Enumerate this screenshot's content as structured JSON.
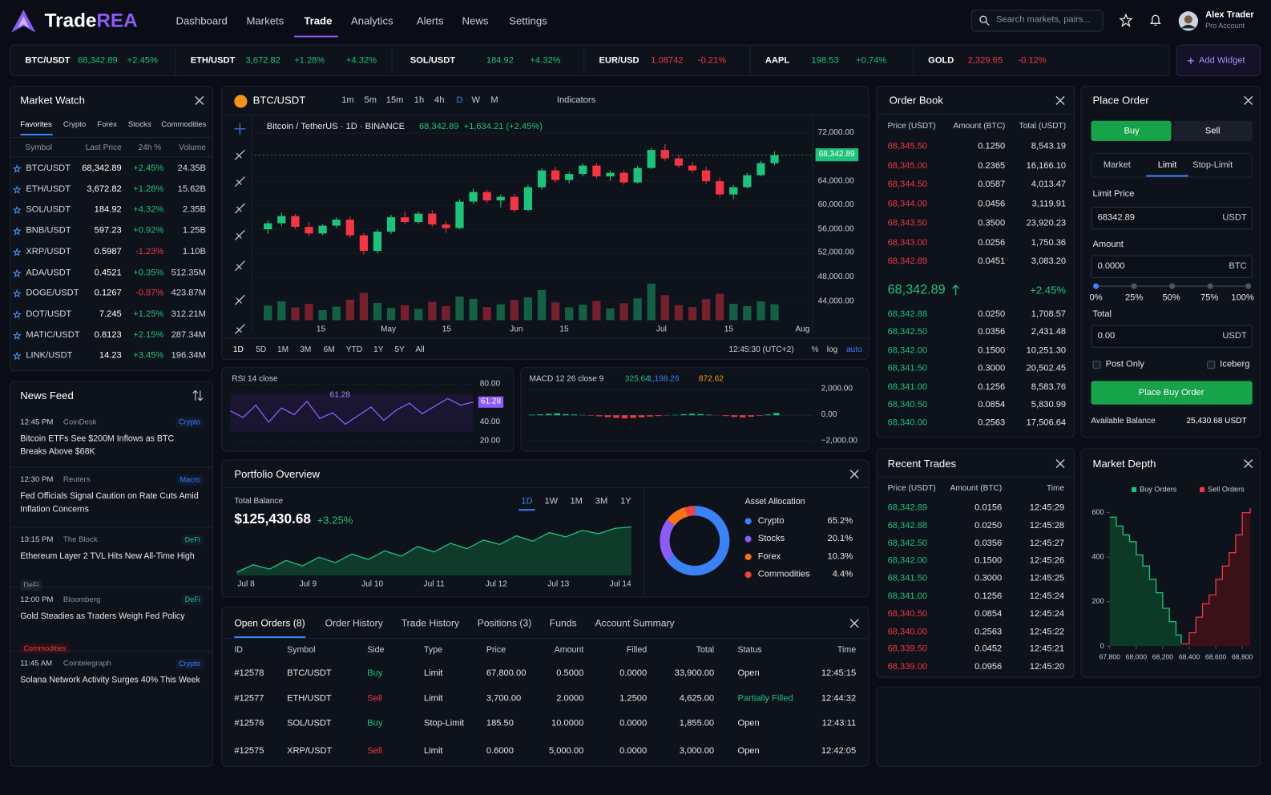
{
  "header": {
    "brand": [
      "Trade",
      "REA"
    ],
    "nav": [
      "Dashboard",
      "Markets",
      "Trade",
      "Analytics",
      "Alerts",
      "News",
      "Settings"
    ],
    "search": "Search markets, pairs...",
    "user_name": "Alex Trader",
    "user_role": "Pro Account"
  },
  "ticker": [
    {
      "symbol": "BTC/USDT",
      "price": "68,342.89",
      "changes": [
        "+2.45%"
      ]
    },
    {
      "symbol": "ETH/USDT",
      "price": "3,672.82",
      "changes": [
        "+1.28%",
        "+4.32%"
      ]
    },
    {
      "symbol": "SOL/USDT",
      "price": "184.92",
      "changes": [
        "+4.32%"
      ]
    },
    {
      "symbol": "EUR/USD",
      "price": "1.08742",
      "changes": [
        "-0.21%"
      ]
    },
    {
      "symbol": "AAPL",
      "price": "198.53",
      "changes": [
        "+0.74%"
      ]
    },
    {
      "symbol": "GOLD",
      "price": "2,329.65",
      "changes": [
        "-0.12%"
      ]
    }
  ],
  "add_widget": "Add Widget",
  "market_watch": {
    "title": "Market Watch",
    "tabs": [
      "Favorites",
      "Crypto",
      "Forex",
      "Stocks",
      "Commodities"
    ],
    "headers": [
      "Symbol",
      "Last Price",
      "24h %",
      "Volume"
    ],
    "rows": [
      [
        "BTC/USDT",
        "68,342.89",
        "+2.45%",
        "24.35B"
      ],
      [
        "ETH/USDT",
        "3,672.82",
        "+1.28%",
        "15.62B"
      ],
      [
        "SOL/USDT",
        "184.92",
        "+4.32%",
        "2.35B"
      ],
      [
        "BNB/USDT",
        "597.23",
        "+0.92%",
        "1.25B"
      ],
      [
        "XRP/USDT",
        "0.5987",
        "-1.23%",
        "1.10B"
      ],
      [
        "ADA/USDT",
        "0.4521",
        "+0.35%",
        "512.35M"
      ],
      [
        "DOGE/USDT",
        "0.1267",
        "-0.87%",
        "423.87M"
      ],
      [
        "DOT/USDT",
        "7.245",
        "+1.25%",
        "312.21M"
      ],
      [
        "MATIC/USDT",
        "0.8123",
        "+2.15%",
        "287.34M"
      ],
      [
        "LINK/USDT",
        "14.23",
        "+3.45%",
        "196.34M"
      ]
    ]
  },
  "news": {
    "title": "News Feed",
    "items": [
      {
        "time": "12:45 PM",
        "source": "CoinDesk",
        "tag": "Crypto",
        "headline": "Bitcoin ETFs See $200M Inflows as BTC Breaks Above $68K"
      },
      {
        "time": "12:30 PM",
        "source": "Reuters",
        "tag": "Macro",
        "headline": "Fed Officials Signal Caution on Rate Cuts Amid Inflation Concerns"
      },
      {
        "time": "13:15 PM",
        "source": "The Block",
        "tag": "DeFi",
        "headline": "Ethereum Layer 2 TVL Hits New All-Time High",
        "extra_tag": "DeFi"
      },
      {
        "time": "12:00 PM",
        "source": "Bloomberg",
        "tag": "DeFi",
        "headline": "Gold Steadies as Traders Weigh Fed Policy",
        "extra_tag": "Commodities"
      },
      {
        "time": "11:45 AM",
        "source": "Cointelegraph",
        "tag": "Crypto",
        "headline": "Solana Network Activity Surges 40% This Week"
      }
    ]
  },
  "price_chart": {
    "pair": "BTC/USDT",
    "timeframes": [
      "1m",
      "5m",
      "15m",
      "1h",
      "4h",
      "D",
      "W",
      "M"
    ],
    "indicators": "Indicators",
    "legend": "Bitcoin / TetherUS · 1D · BINANCE",
    "legend_price": "68,342.89",
    "legend_change": "+1,634.21 (+2.45%)",
    "current_price": {
      "value": 68342.89,
      "label": "68,342.89"
    },
    "ylim": [
      40600,
      75000
    ],
    "yticks": [
      {
        "value": 72000,
        "label": "72,000.00"
      },
      {
        "value": 64000,
        "label": "64,000.00"
      },
      {
        "value": 60000,
        "label": "60,000.00"
      },
      {
        "value": 56000,
        "label": "56,000.00"
      },
      {
        "value": 52000,
        "label": "52,000.00"
      },
      {
        "value": 48000,
        "label": "48,000.00"
      },
      {
        "value": 44000,
        "label": "44,000.00"
      }
    ],
    "x_labels": [
      "15",
      "May",
      "15",
      "Jun",
      "15",
      "Jul",
      "15",
      "Aug"
    ],
    "candles": [
      [
        56000,
        57500,
        55200,
        57000
      ],
      [
        57000,
        58800,
        56500,
        58200
      ],
      [
        58200,
        58600,
        56000,
        56400
      ],
      [
        56400,
        57200,
        54800,
        55300
      ],
      [
        55300,
        56900,
        55000,
        56600
      ],
      [
        56600,
        58000,
        56200,
        57600
      ],
      [
        57600,
        58200,
        54600,
        55000
      ],
      [
        55000,
        55400,
        51800,
        52400
      ],
      [
        52400,
        56000,
        52000,
        55600
      ],
      [
        55600,
        58400,
        55200,
        58000
      ],
      [
        58000,
        58900,
        56800,
        57200
      ],
      [
        57200,
        59000,
        56900,
        58600
      ],
      [
        58600,
        59200,
        56400,
        56800
      ],
      [
        56800,
        57400,
        55400,
        56200
      ],
      [
        56200,
        61000,
        56000,
        60600
      ],
      [
        60600,
        62800,
        60200,
        62200
      ],
      [
        62200,
        62600,
        60400,
        60800
      ],
      [
        60800,
        61800,
        59600,
        61400
      ],
      [
        61400,
        61900,
        58800,
        59200
      ],
      [
        59200,
        63400,
        59000,
        63000
      ],
      [
        63000,
        66200,
        62600,
        65800
      ],
      [
        65800,
        66400,
        63800,
        64200
      ],
      [
        64200,
        65600,
        63600,
        65200
      ],
      [
        65200,
        67000,
        64800,
        66600
      ],
      [
        66600,
        67000,
        64400,
        64800
      ],
      [
        64800,
        65800,
        64000,
        65400
      ],
      [
        65400,
        65800,
        63400,
        63800
      ],
      [
        63800,
        66600,
        63600,
        66200
      ],
      [
        66200,
        69600,
        66000,
        69200
      ],
      [
        69200,
        70200,
        67400,
        67800
      ],
      [
        67800,
        68400,
        66200,
        66600
      ],
      [
        66600,
        67200,
        65400,
        65800
      ],
      [
        65800,
        66400,
        63600,
        64000
      ],
      [
        64000,
        64600,
        61400,
        61800
      ],
      [
        61800,
        63400,
        61000,
        63000
      ],
      [
        63000,
        65400,
        62800,
        65000
      ],
      [
        65000,
        67400,
        64800,
        67000
      ],
      [
        67000,
        69000,
        66600,
        68342.89
      ]
    ],
    "volumes": [
      32,
      41,
      28,
      36,
      22,
      30,
      45,
      60,
      38,
      27,
      33,
      25,
      40,
      31,
      52,
      47,
      29,
      35,
      44,
      50,
      66,
      39,
      28,
      34,
      42,
      26,
      37,
      48,
      80,
      55,
      33,
      29,
      46,
      58,
      36,
      31,
      41,
      35
    ],
    "ranges": [
      "1D",
      "5D",
      "1M",
      "3M",
      "6M",
      "YTD",
      "1Y",
      "5Y",
      "All"
    ],
    "clock": "12:45:30 (UTC+2)",
    "scale_opts": [
      "%",
      "log",
      "auto"
    ]
  },
  "rsi": {
    "label": "RSI 14 close",
    "value_label": "61.28",
    "ylim": [
      16,
      80
    ],
    "yticks": [
      {
        "value": 80,
        "label": "80.00"
      },
      {
        "value": 40,
        "label": "40.00"
      },
      {
        "value": 20,
        "label": "20.00"
      }
    ],
    "values": [
      52,
      45,
      58,
      40,
      55,
      48,
      62,
      44,
      50,
      38,
      47,
      56,
      42,
      53,
      60,
      49,
      57,
      65,
      58,
      61.28
    ]
  },
  "macd": {
    "label": "MACD 12 26 close 9",
    "values_text": [
      "325.64",
      "1,198.26",
      "872.62"
    ],
    "ylim": [
      -2300,
      2400
    ],
    "yticks": [
      {
        "value": 2000,
        "label": "2,000.00"
      },
      {
        "value": 0,
        "label": "0.00"
      },
      {
        "value": -2000,
        "label": "−2,000.00"
      }
    ],
    "histogram": [
      40,
      70,
      110,
      150,
      90,
      60,
      20,
      -30,
      -80,
      -140,
      -200,
      -240,
      -210,
      -160,
      -100,
      -60,
      -20,
      30,
      80,
      120,
      90,
      40,
      -10,
      -60,
      -120,
      -160,
      -110,
      -40,
      60,
      180
    ]
  },
  "portfolio": {
    "title": "Portfolio Overview",
    "balance_label": "Total Balance",
    "balance": "$125,430.68",
    "change": "+3.25%",
    "ranges": [
      "1D",
      "1W",
      "1M",
      "3M",
      "1Y"
    ],
    "x_labels": [
      "Jul 8",
      "Jul 9",
      "Jul 10",
      "Jul 11",
      "Jul 12",
      "Jul 13",
      "Jul 14"
    ],
    "values": [
      121200,
      121900,
      121500,
      122300,
      121800,
      122600,
      122100,
      122900,
      122400,
      123200,
      122700,
      123600,
      123100,
      123900,
      123400,
      124200,
      123800,
      124600,
      124100,
      124900,
      124500,
      125100,
      124800,
      125300,
      125430.68
    ],
    "allocation_title": "Asset Allocation",
    "allocation": [
      {
        "name": "Crypto",
        "value": 65.2,
        "label": "65.2%",
        "color": "#3b82f6"
      },
      {
        "name": "Stocks",
        "value": 20.1,
        "label": "20.1%",
        "color": "#8b5cf6"
      },
      {
        "name": "Forex",
        "value": 10.3,
        "label": "10.3%",
        "color": "#f97316"
      },
      {
        "name": "Commodities",
        "value": 4.4,
        "label": "4.4%",
        "color": "#ef4444"
      }
    ]
  },
  "orders": {
    "tabs": [
      "Open Orders (8)",
      "Order History",
      "Trade History",
      "Positions (3)",
      "Funds",
      "Account Summary"
    ],
    "headers": [
      "ID",
      "Symbol",
      "Side",
      "Type",
      "Price",
      "Amount",
      "Filled",
      "Total",
      "Status",
      "Time"
    ],
    "rows": [
      [
        "#12578",
        "BTC/USDT",
        "Buy",
        "Limit",
        "67,800.00",
        "0.5000",
        "0.0000",
        "33,900.00",
        "Open",
        "12:45:15"
      ],
      [
        "#12577",
        "ETH/USDT",
        "Sell",
        "Limit",
        "3,700.00",
        "2.0000",
        "1.2500",
        "4,625.00",
        "Partially Filled",
        "12:44:32"
      ],
      [
        "#12576",
        "SOL/USDT",
        "Buy",
        "Stop-Limit",
        "185.50",
        "10.0000",
        "0.0000",
        "1,855.00",
        "Open",
        "12:43:11"
      ],
      [
        "#12575",
        "XRP/USDT",
        "Sell",
        "Limit",
        "0.6000",
        "5,000.00",
        "0.0000",
        "3,000.00",
        "Open",
        "12:42:05"
      ]
    ]
  },
  "order_book": {
    "title": "Order Book",
    "headers": [
      "Price (USDT)",
      "Amount (BTC)",
      "Total (USDT)"
    ],
    "asks": [
      [
        "68,345.50",
        "0.1250",
        "8,543.19"
      ],
      [
        "68,345.00",
        "0.2365",
        "16,166.10"
      ],
      [
        "68,344.50",
        "0.0587",
        "4,013.47"
      ],
      [
        "68,344.00",
        "0.0456",
        "3,119.91"
      ],
      [
        "68,343.50",
        "0.3500",
        "23,920.23"
      ],
      [
        "68,343.00",
        "0.0256",
        "1,750.36"
      ],
      [
        "68,342.89",
        "0.0451",
        "3,083.20"
      ]
    ],
    "last_price": "68,342.89",
    "last_change": "+2.45%",
    "bids": [
      [
        "68,342.88",
        "0.0250",
        "1,708.57"
      ],
      [
        "68,342.50",
        "0.0356",
        "2,431.48"
      ],
      [
        "68,342.00",
        "0.1500",
        "10,251.30"
      ],
      [
        "68,341.50",
        "0.3000",
        "20,502.45"
      ],
      [
        "68,341.00",
        "0.1256",
        "8,583.76"
      ],
      [
        "68,340.50",
        "0.0854",
        "5,830.99"
      ],
      [
        "68,340.00",
        "0.2563",
        "17,506.64"
      ]
    ]
  },
  "place_order": {
    "title": "Place Order",
    "side_tabs": [
      "Buy",
      "Sell"
    ],
    "order_types": [
      "Market",
      "Limit",
      "Stop-Limit"
    ],
    "limit_label": "Limit Price",
    "limit_value": "68342.89",
    "limit_unit": "USDT",
    "amount_label": "Amount",
    "amount_value": "0.0000",
    "amount_unit": "BTC",
    "slider": [
      "0%",
      "25%",
      "50%",
      "75%",
      "100%"
    ],
    "total_label": "Total",
    "total_value": "0.00",
    "total_unit": "USDT",
    "post_only": "Post Only",
    "iceberg": "Iceberg",
    "submit": "Place Buy Order",
    "balance_label": "Available Balance",
    "balance": "25,430.68 USDT"
  },
  "recent_trades": {
    "title": "Recent Trades",
    "headers": [
      "Price (USDT)",
      "Amount (BTC)",
      "Time"
    ],
    "buys": [
      [
        "68,342.89",
        "0.0156",
        "12:45:29"
      ],
      [
        "68,342.88",
        "0.0250",
        "12:45:28"
      ],
      [
        "68,342.50",
        "0.0356",
        "12:45:27"
      ],
      [
        "68,342.00",
        "0.1500",
        "12:45:26"
      ],
      [
        "68,341.50",
        "0.3000",
        "12:45:25"
      ],
      [
        "68,341.00",
        "0.1256",
        "12:45:24"
      ]
    ],
    "sells": [
      [
        "68,340.50",
        "0.0854",
        "12:45:24"
      ],
      [
        "68,340.00",
        "0.2563",
        "12:45:22"
      ],
      [
        "68,339.50",
        "0.0452",
        "12:45:21"
      ],
      [
        "68,339.00",
        "0.0956",
        "12:45:20"
      ]
    ]
  },
  "market_depth": {
    "title": "Market Depth",
    "legend": [
      "Buy Orders",
      "Sell Orders"
    ],
    "ylim": [
      0,
      660
    ],
    "yticks": [
      600,
      400,
      200,
      0
    ],
    "xlim": [
      67800,
      68870
    ],
    "xticks": [
      {
        "value": 67800,
        "label": "67,800"
      },
      {
        "value": 68000,
        "label": "68,000"
      },
      {
        "value": 68200,
        "label": "68,200"
      },
      {
        "value": 68400,
        "label": "68,400"
      },
      {
        "value": 68600,
        "label": "68,600"
      },
      {
        "value": 68800,
        "label": "68,800"
      }
    ],
    "bid_x": [
      67800,
      67850,
      67900,
      67950,
      68000,
      68050,
      68100,
      68150,
      68200,
      68250,
      68300,
      68340
    ],
    "bid_y": [
      580,
      540,
      500,
      470,
      410,
      360,
      300,
      240,
      170,
      110,
      50,
      10
    ],
    "ask_x": [
      68345,
      68400,
      68450,
      68500,
      68550,
      68600,
      68650,
      68700,
      68750,
      68800,
      68860
    ],
    "ask_y": [
      10,
      60,
      130,
      190,
      230,
      300,
      360,
      420,
      500,
      600,
      620
    ]
  }
}
